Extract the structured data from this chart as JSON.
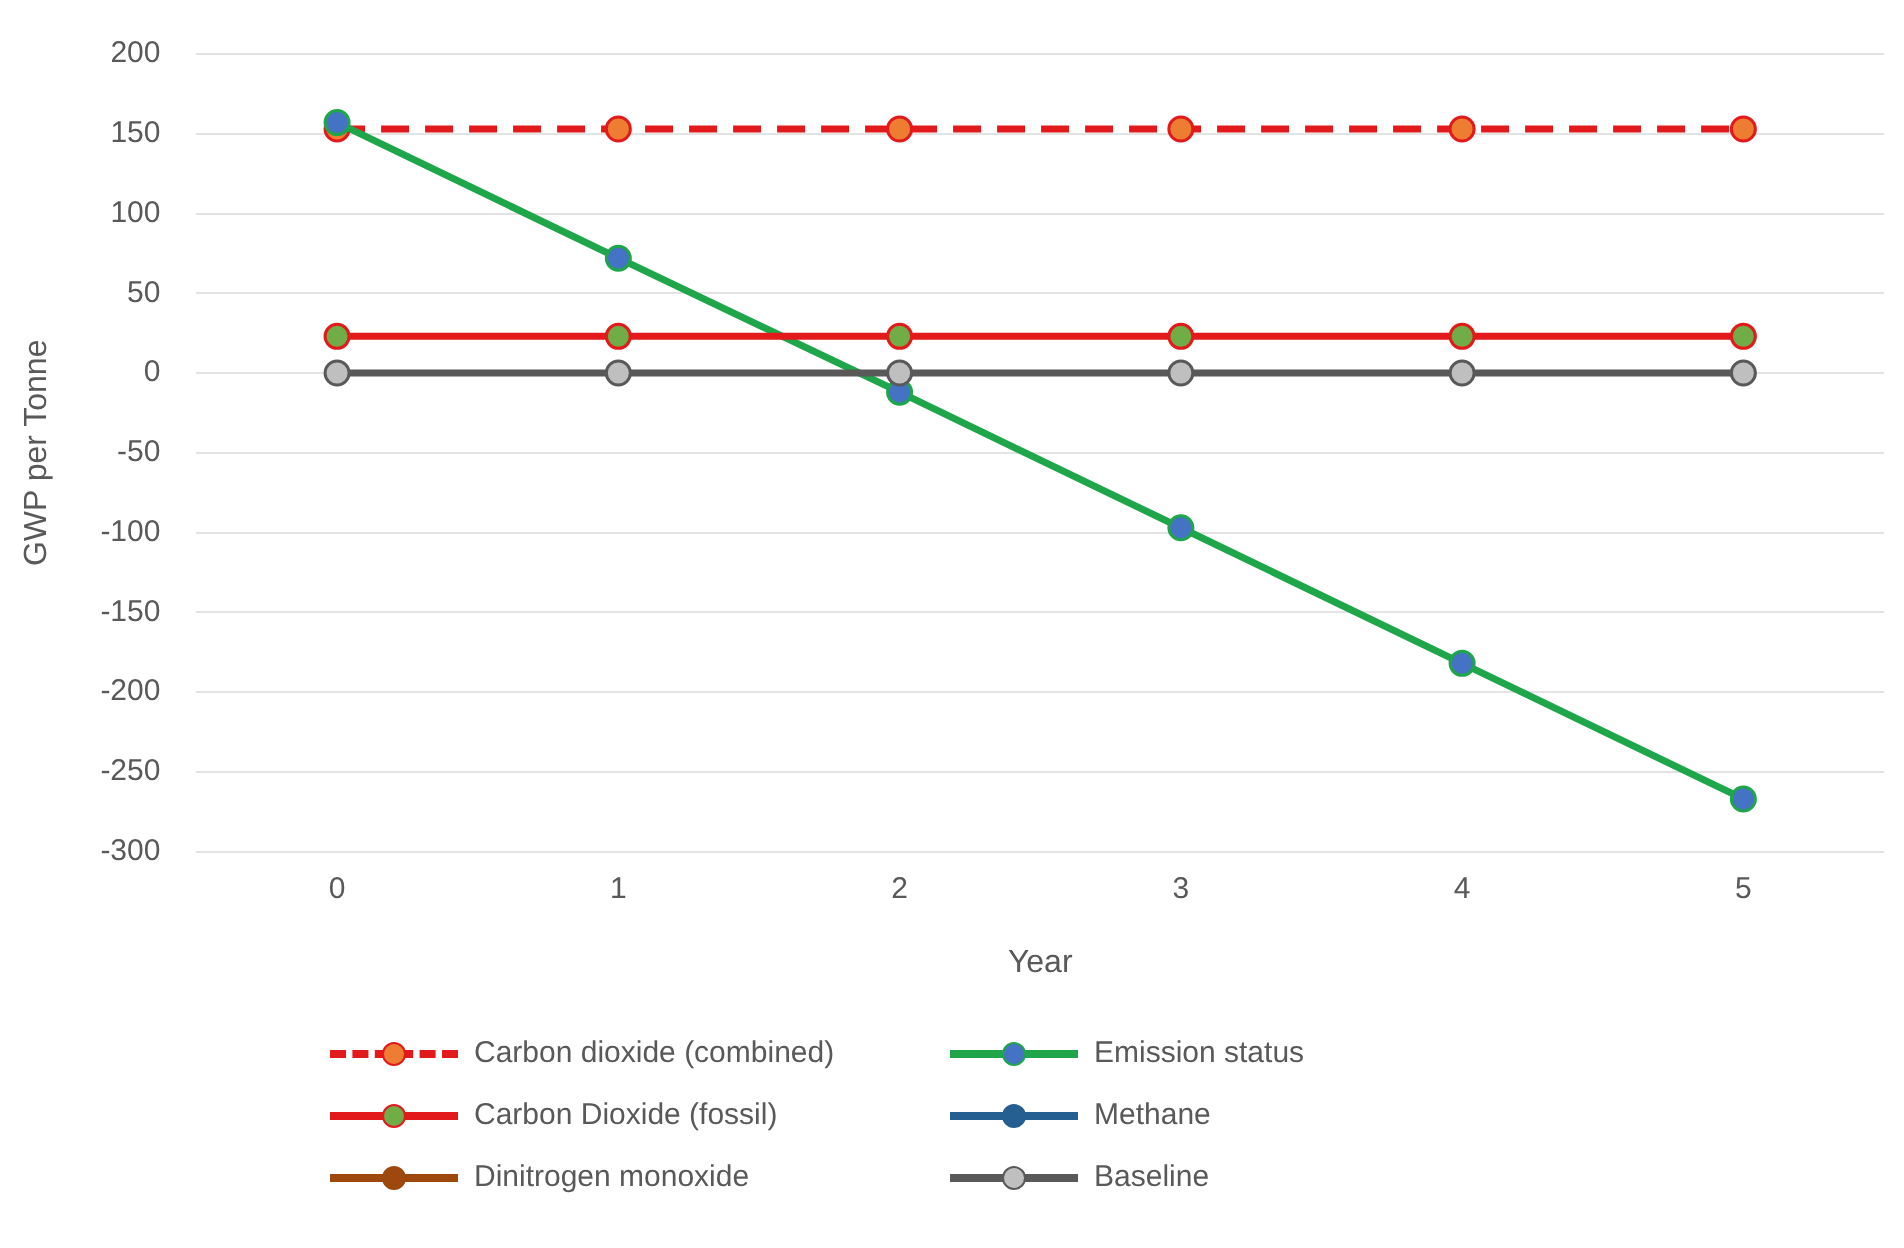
{
  "chart_data": {
    "type": "line",
    "xlabel": "Year",
    "ylabel": "GWP per Tonne",
    "categories": [
      "0",
      "1",
      "2",
      "3",
      "4",
      "5"
    ],
    "ylim": [
      -300,
      200
    ],
    "yticks": [
      -300,
      -250,
      -200,
      -150,
      -100,
      -50,
      0,
      50,
      100,
      150,
      200
    ],
    "grid": "y",
    "legend": "bottom",
    "marker": "circle",
    "series": [
      {
        "name": "Carbon dioxide (combined)",
        "color": "#e31a1c",
        "colors": [
          "#ed7d31",
          "#ed7d31",
          "#ed7d31",
          "#ed7d31",
          "#ed7d31",
          "#ed7d31"
        ],
        "line_style": "dashed",
        "values": [
          153,
          153,
          153,
          153,
          153,
          153
        ]
      },
      {
        "name": "Emission status",
        "color": "#1fa64a",
        "colors": [
          "#4472c4",
          "#4472c4",
          "#4472c4",
          "#4472c4",
          "#4472c4",
          "#4472c4"
        ],
        "values": [
          157,
          72,
          -12,
          -97,
          -182,
          -267
        ]
      },
      {
        "name": "Carbon Dioxide (fossil)",
        "color": "#e31a1c",
        "colors": [
          "#70ad47",
          "#70ad47",
          "#70ad47",
          "#70ad47",
          "#70ad47",
          "#70ad47"
        ],
        "values": [
          23,
          23,
          23,
          23,
          23,
          23
        ]
      },
      {
        "name": "Methane",
        "color": "#255e91",
        "colors": [
          "#255e91",
          "#255e91",
          "#255e91",
          "#255e91",
          "#255e91",
          "#255e91"
        ],
        "values": [
          null,
          null,
          null,
          null,
          null,
          null
        ]
      },
      {
        "name": "Dinitrogen monoxide",
        "color": "#9e480e",
        "colors": [
          "#9e480e",
          "#9e480e",
          "#9e480e",
          "#9e480e",
          "#9e480e",
          "#9e480e"
        ],
        "values": [
          null,
          null,
          null,
          null,
          null,
          null
        ]
      },
      {
        "name": "Baseline",
        "color": "#595959",
        "colors": [
          "#bfbfbf",
          "#bfbfbf",
          "#bfbfbf",
          "#bfbfbf",
          "#bfbfbf",
          "#bfbfbf"
        ],
        "values": [
          0,
          0,
          0,
          0,
          0,
          0
        ]
      }
    ]
  }
}
